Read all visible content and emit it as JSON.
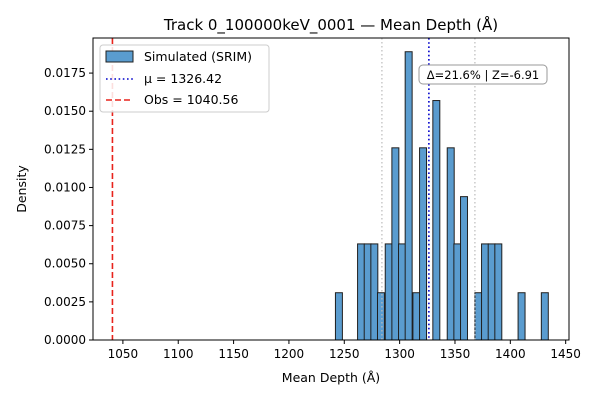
{
  "chart_data": {
    "type": "bar",
    "title": "Track 0_100000keV_0001 — Mean Depth (Å)",
    "xlabel": "Mean Depth (Å)",
    "ylabel": "Density",
    "xlim": [
      1023,
      1453
    ],
    "ylim": [
      0,
      0.0198
    ],
    "bin_width": 6.3,
    "xticks": [
      1050,
      1100,
      1150,
      1200,
      1250,
      1300,
      1350,
      1400,
      1450
    ],
    "xtick_labels": [
      "1050",
      "1100",
      "1150",
      "1200",
      "1250",
      "1300",
      "1350",
      "1400",
      "1450"
    ],
    "yticks": [
      0,
      0.0025,
      0.005,
      0.0075,
      0.01,
      0.0125,
      0.015,
      0.0175
    ],
    "ytick_labels": [
      "0.0000",
      "0.0025",
      "0.0050",
      "0.0075",
      "0.0100",
      "0.0125",
      "0.0150",
      "0.0175"
    ],
    "grid": false,
    "legend_position": "top-left",
    "series": [
      {
        "name": "Simulated (SRIM)",
        "color": "#5a9ccf",
        "edge_color": "#1f1f1f",
        "bins": [
          {
            "x": 1242,
            "value": 0.0031
          },
          {
            "x": 1262,
            "value": 0.0063
          },
          {
            "x": 1268,
            "value": 0.0063
          },
          {
            "x": 1274,
            "value": 0.0063
          },
          {
            "x": 1280,
            "value": 0.0031
          },
          {
            "x": 1287,
            "value": 0.0063
          },
          {
            "x": 1293,
            "value": 0.0126
          },
          {
            "x": 1299,
            "value": 0.0063
          },
          {
            "x": 1305,
            "value": 0.0189
          },
          {
            "x": 1312,
            "value": 0.0031
          },
          {
            "x": 1318,
            "value": 0.0126
          },
          {
            "x": 1330,
            "value": 0.0157
          },
          {
            "x": 1343,
            "value": 0.0126
          },
          {
            "x": 1349,
            "value": 0.0063
          },
          {
            "x": 1355,
            "value": 0.0094
          },
          {
            "x": 1368,
            "value": 0.0031
          },
          {
            "x": 1374,
            "value": 0.0063
          },
          {
            "x": 1380,
            "value": 0.0063
          },
          {
            "x": 1386,
            "value": 0.0063
          },
          {
            "x": 1407,
            "value": 0.0031
          },
          {
            "x": 1428,
            "value": 0.0031
          }
        ]
      }
    ],
    "reference_lines": [
      {
        "name": "μ = 1326.42",
        "x": 1326.42,
        "color": "#0000cc",
        "style": "dotted",
        "in_legend": true
      },
      {
        "name": "Obs = 1040.56",
        "x": 1040.56,
        "color": "#e8231c",
        "style": "dashed",
        "in_legend": true
      },
      {
        "name": "",
        "x": 1284,
        "color": "#bbbbbb",
        "style": "dotted",
        "in_legend": false
      },
      {
        "name": "",
        "x": 1368,
        "color": "#bbbbbb",
        "style": "dotted",
        "in_legend": false
      }
    ],
    "annotation": {
      "text": "Δ=21.6% | Z=-6.91"
    }
  }
}
